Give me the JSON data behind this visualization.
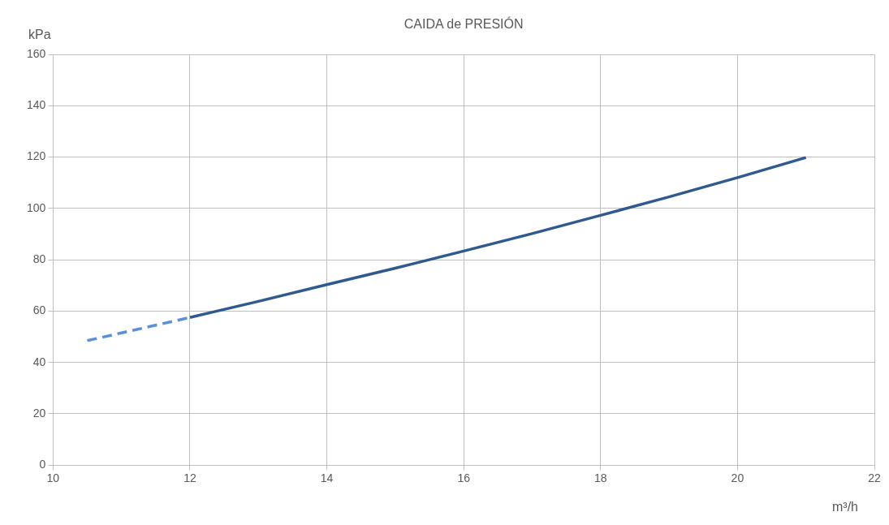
{
  "chart_data": {
    "type": "line",
    "title": "CAIDA de PRESIÓN",
    "xlabel": "m³/h",
    "ylabel": "kPa",
    "series": [
      {
        "color": "#5b8fd6",
        "line_style": "dashed",
        "x": [
          10.5,
          11,
          11.5,
          12
        ],
        "values": [
          48.5,
          51.5,
          54.5,
          57.5
        ]
      },
      {
        "color": "#2f5a8f",
        "line_style": "solid",
        "x": [
          12,
          13,
          14,
          15,
          16,
          17,
          18,
          19,
          20,
          21
        ],
        "values": [
          57.5,
          63.8,
          70.3,
          76.7,
          83.4,
          90.2,
          97.3,
          104.5,
          112,
          119.8
        ]
      }
    ],
    "xlim": [
      10,
      22
    ],
    "xticks": [
      10,
      12,
      14,
      16,
      18,
      20,
      22
    ],
    "ylim": [
      0,
      160
    ],
    "yticks": [
      0,
      20,
      40,
      60,
      80,
      100,
      120,
      140,
      160
    ],
    "grid": true,
    "legend": false,
    "marker": "none"
  }
}
